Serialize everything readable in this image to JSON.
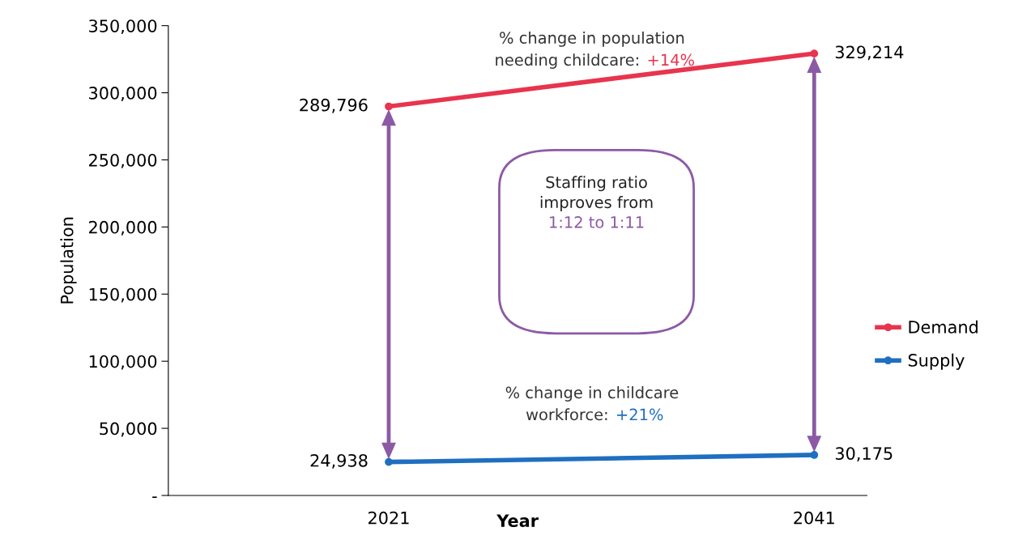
{
  "chart_data": {
    "type": "line",
    "xlabel": "Year",
    "ylabel": "Population",
    "categories": [
      "2021",
      "2041"
    ],
    "series": [
      {
        "name": "Demand",
        "color": "#e8344e",
        "values": [
          289796,
          329214
        ],
        "value_labels": [
          "289,796",
          "329,214"
        ]
      },
      {
        "name": "Supply",
        "color": "#1f6fc1",
        "values": [
          24938,
          30175
        ],
        "value_labels": [
          "24,938",
          "30,175"
        ]
      }
    ],
    "ylim": [
      0,
      350000
    ],
    "yticks": [
      {
        "value": 0,
        "label": "-"
      },
      {
        "value": 50000,
        "label": "50,000"
      },
      {
        "value": 100000,
        "label": "100,000"
      },
      {
        "value": 150000,
        "label": "150,000"
      },
      {
        "value": 200000,
        "label": "200,000"
      },
      {
        "value": 250000,
        "label": "250,000"
      },
      {
        "value": 300000,
        "label": "300,000"
      },
      {
        "value": 350000,
        "label": "350,000"
      }
    ],
    "annotations": [
      "% change in population\nneeding childcare:",
      "+14%",
      "% change in childcare\nworkforce:",
      "+21%",
      "Staffing ratio\nimproves from",
      "1:12 to 1:11"
    ],
    "marker": "circle",
    "line_style": "solid",
    "legend": "right",
    "grid": false
  }
}
